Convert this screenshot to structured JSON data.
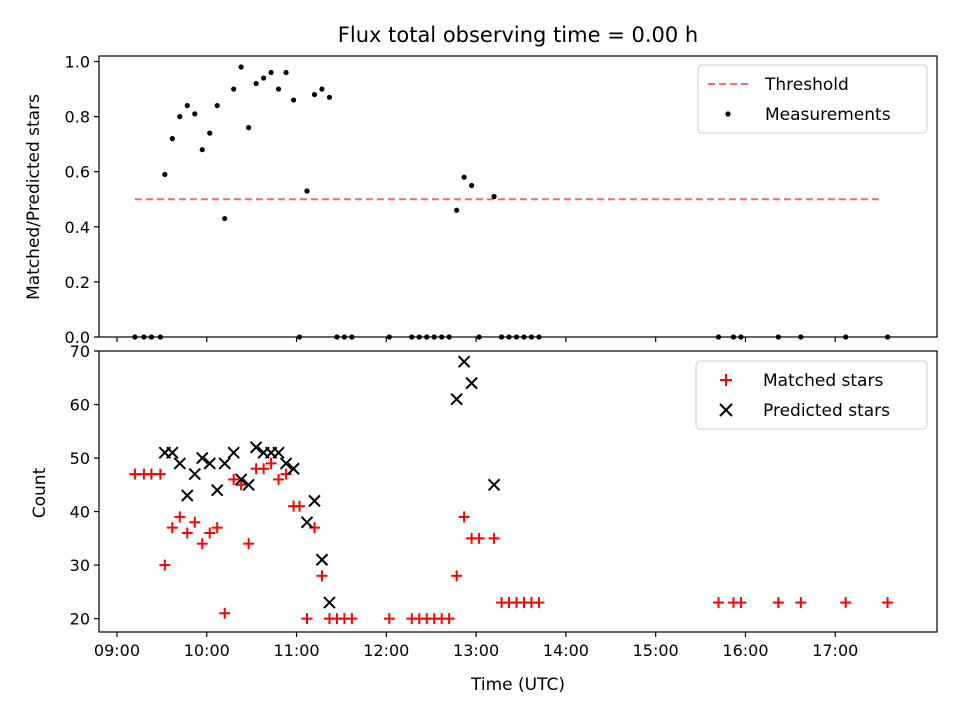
{
  "chart_data": [
    {
      "type": "scatter",
      "title": "Flux total observing time = 0.00 h",
      "xlabel": "",
      "ylabel": "Matched/Predicted stars",
      "ylim": [
        0,
        1.02
      ],
      "yticks": [
        "0.0",
        "0.2",
        "0.4",
        "0.6",
        "0.8",
        "1.0"
      ],
      "legend": {
        "position": "top-right"
      },
      "threshold": {
        "name": "Threshold",
        "value": 0.5,
        "x_range": [
          "09:12",
          "17:30"
        ],
        "color": "#ff6666"
      },
      "series": [
        {
          "name": "Measurements",
          "color": "#000000",
          "points": [
            [
              "09:12",
              0.0
            ],
            [
              "09:18",
              0.0
            ],
            [
              "09:23",
              0.0
            ],
            [
              "09:29",
              0.0
            ],
            [
              "09:32",
              0.59
            ],
            [
              "09:37",
              0.72
            ],
            [
              "09:42",
              0.8
            ],
            [
              "09:47",
              0.84
            ],
            [
              "09:52",
              0.81
            ],
            [
              "09:57",
              0.68
            ],
            [
              "10:02",
              0.74
            ],
            [
              "10:07",
              0.84
            ],
            [
              "10:12",
              0.43
            ],
            [
              "10:18",
              0.9
            ],
            [
              "10:23",
              0.98
            ],
            [
              "10:28",
              0.76
            ],
            [
              "10:33",
              0.92
            ],
            [
              "10:38",
              0.94
            ],
            [
              "10:43",
              0.96
            ],
            [
              "10:48",
              0.9
            ],
            [
              "10:53",
              0.96
            ],
            [
              "10:58",
              0.86
            ],
            [
              "11:02",
              0.0
            ],
            [
              "11:07",
              0.53
            ],
            [
              "11:12",
              0.88
            ],
            [
              "11:17",
              0.9
            ],
            [
              "11:22",
              0.87
            ],
            [
              "11:27",
              0.0
            ],
            [
              "11:32",
              0.0
            ],
            [
              "11:37",
              0.0
            ],
            [
              "12:02",
              0.0
            ],
            [
              "12:17",
              0.0
            ],
            [
              "12:22",
              0.0
            ],
            [
              "12:27",
              0.0
            ],
            [
              "12:32",
              0.0
            ],
            [
              "12:37",
              0.0
            ],
            [
              "12:42",
              0.0
            ],
            [
              "12:47",
              0.46
            ],
            [
              "12:52",
              0.58
            ],
            [
              "12:57",
              0.55
            ],
            [
              "13:02",
              0.0
            ],
            [
              "13:12",
              0.51
            ],
            [
              "13:17",
              0.0
            ],
            [
              "13:22",
              0.0
            ],
            [
              "13:27",
              0.0
            ],
            [
              "13:32",
              0.0
            ],
            [
              "13:37",
              0.0
            ],
            [
              "13:42",
              0.0
            ],
            [
              "15:42",
              0.0
            ],
            [
              "15:52",
              0.0
            ],
            [
              "15:57",
              0.0
            ],
            [
              "16:22",
              0.0
            ],
            [
              "16:37",
              0.0
            ],
            [
              "17:07",
              0.0
            ],
            [
              "17:35",
              0.0
            ]
          ]
        }
      ]
    },
    {
      "type": "scatter",
      "title": "",
      "xlabel": "Time (UTC)",
      "ylabel": "Count",
      "ylim": [
        17.5,
        70
      ],
      "yticks": [
        "20",
        "30",
        "40",
        "50",
        "60",
        "70"
      ],
      "xticks": [
        "09:00",
        "10:00",
        "11:00",
        "12:00",
        "13:00",
        "14:00",
        "15:00",
        "16:00",
        "17:00"
      ],
      "x_domain": [
        "08:48",
        "18:08"
      ],
      "legend": {
        "position": "top-right"
      },
      "series": [
        {
          "name": "Matched stars",
          "color": "#ff0000",
          "marker": "plus",
          "points": [
            [
              "09:12",
              47
            ],
            [
              "09:18",
              47
            ],
            [
              "09:23",
              47
            ],
            [
              "09:29",
              47
            ],
            [
              "09:32",
              30
            ],
            [
              "09:37",
              37
            ],
            [
              "09:42",
              39
            ],
            [
              "09:47",
              36
            ],
            [
              "09:52",
              38
            ],
            [
              "09:57",
              34
            ],
            [
              "10:02",
              36
            ],
            [
              "10:07",
              37
            ],
            [
              "10:12",
              21
            ],
            [
              "10:18",
              46
            ],
            [
              "10:23",
              45
            ],
            [
              "10:28",
              34
            ],
            [
              "10:33",
              48
            ],
            [
              "10:38",
              48
            ],
            [
              "10:43",
              49
            ],
            [
              "10:48",
              46
            ],
            [
              "10:53",
              47
            ],
            [
              "10:58",
              41
            ],
            [
              "11:02",
              41
            ],
            [
              "11:07",
              20
            ],
            [
              "11:12",
              37
            ],
            [
              "11:17",
              28
            ],
            [
              "11:22",
              20
            ],
            [
              "11:27",
              20
            ],
            [
              "11:32",
              20
            ],
            [
              "11:37",
              20
            ],
            [
              "12:02",
              20
            ],
            [
              "12:17",
              20
            ],
            [
              "12:22",
              20
            ],
            [
              "12:27",
              20
            ],
            [
              "12:32",
              20
            ],
            [
              "12:37",
              20
            ],
            [
              "12:42",
              20
            ],
            [
              "12:47",
              28
            ],
            [
              "12:52",
              39
            ],
            [
              "12:57",
              35
            ],
            [
              "13:02",
              35
            ],
            [
              "13:12",
              35
            ],
            [
              "13:17",
              23
            ],
            [
              "13:22",
              23
            ],
            [
              "13:27",
              23
            ],
            [
              "13:32",
              23
            ],
            [
              "13:37",
              23
            ],
            [
              "13:42",
              23
            ],
            [
              "15:42",
              23
            ],
            [
              "15:52",
              23
            ],
            [
              "15:57",
              23
            ],
            [
              "16:22",
              23
            ],
            [
              "16:37",
              23
            ],
            [
              "17:07",
              23
            ],
            [
              "17:35",
              23
            ]
          ]
        },
        {
          "name": "Predicted stars",
          "color": "#000000",
          "marker": "x",
          "points": [
            [
              "09:32",
              51
            ],
            [
              "09:37",
              51
            ],
            [
              "09:42",
              49
            ],
            [
              "09:47",
              43
            ],
            [
              "09:52",
              47
            ],
            [
              "09:57",
              50
            ],
            [
              "10:02",
              49
            ],
            [
              "10:07",
              44
            ],
            [
              "10:12",
              49
            ],
            [
              "10:18",
              51
            ],
            [
              "10:23",
              46
            ],
            [
              "10:28",
              45
            ],
            [
              "10:33",
              52
            ],
            [
              "10:38",
              51
            ],
            [
              "10:43",
              51
            ],
            [
              "10:48",
              51
            ],
            [
              "10:53",
              49
            ],
            [
              "10:58",
              48
            ],
            [
              "11:07",
              38
            ],
            [
              "11:12",
              42
            ],
            [
              "11:17",
              31
            ],
            [
              "11:22",
              23
            ],
            [
              "12:47",
              61
            ],
            [
              "12:52",
              68
            ],
            [
              "12:57",
              64
            ],
            [
              "13:12",
              45
            ]
          ]
        }
      ]
    }
  ]
}
